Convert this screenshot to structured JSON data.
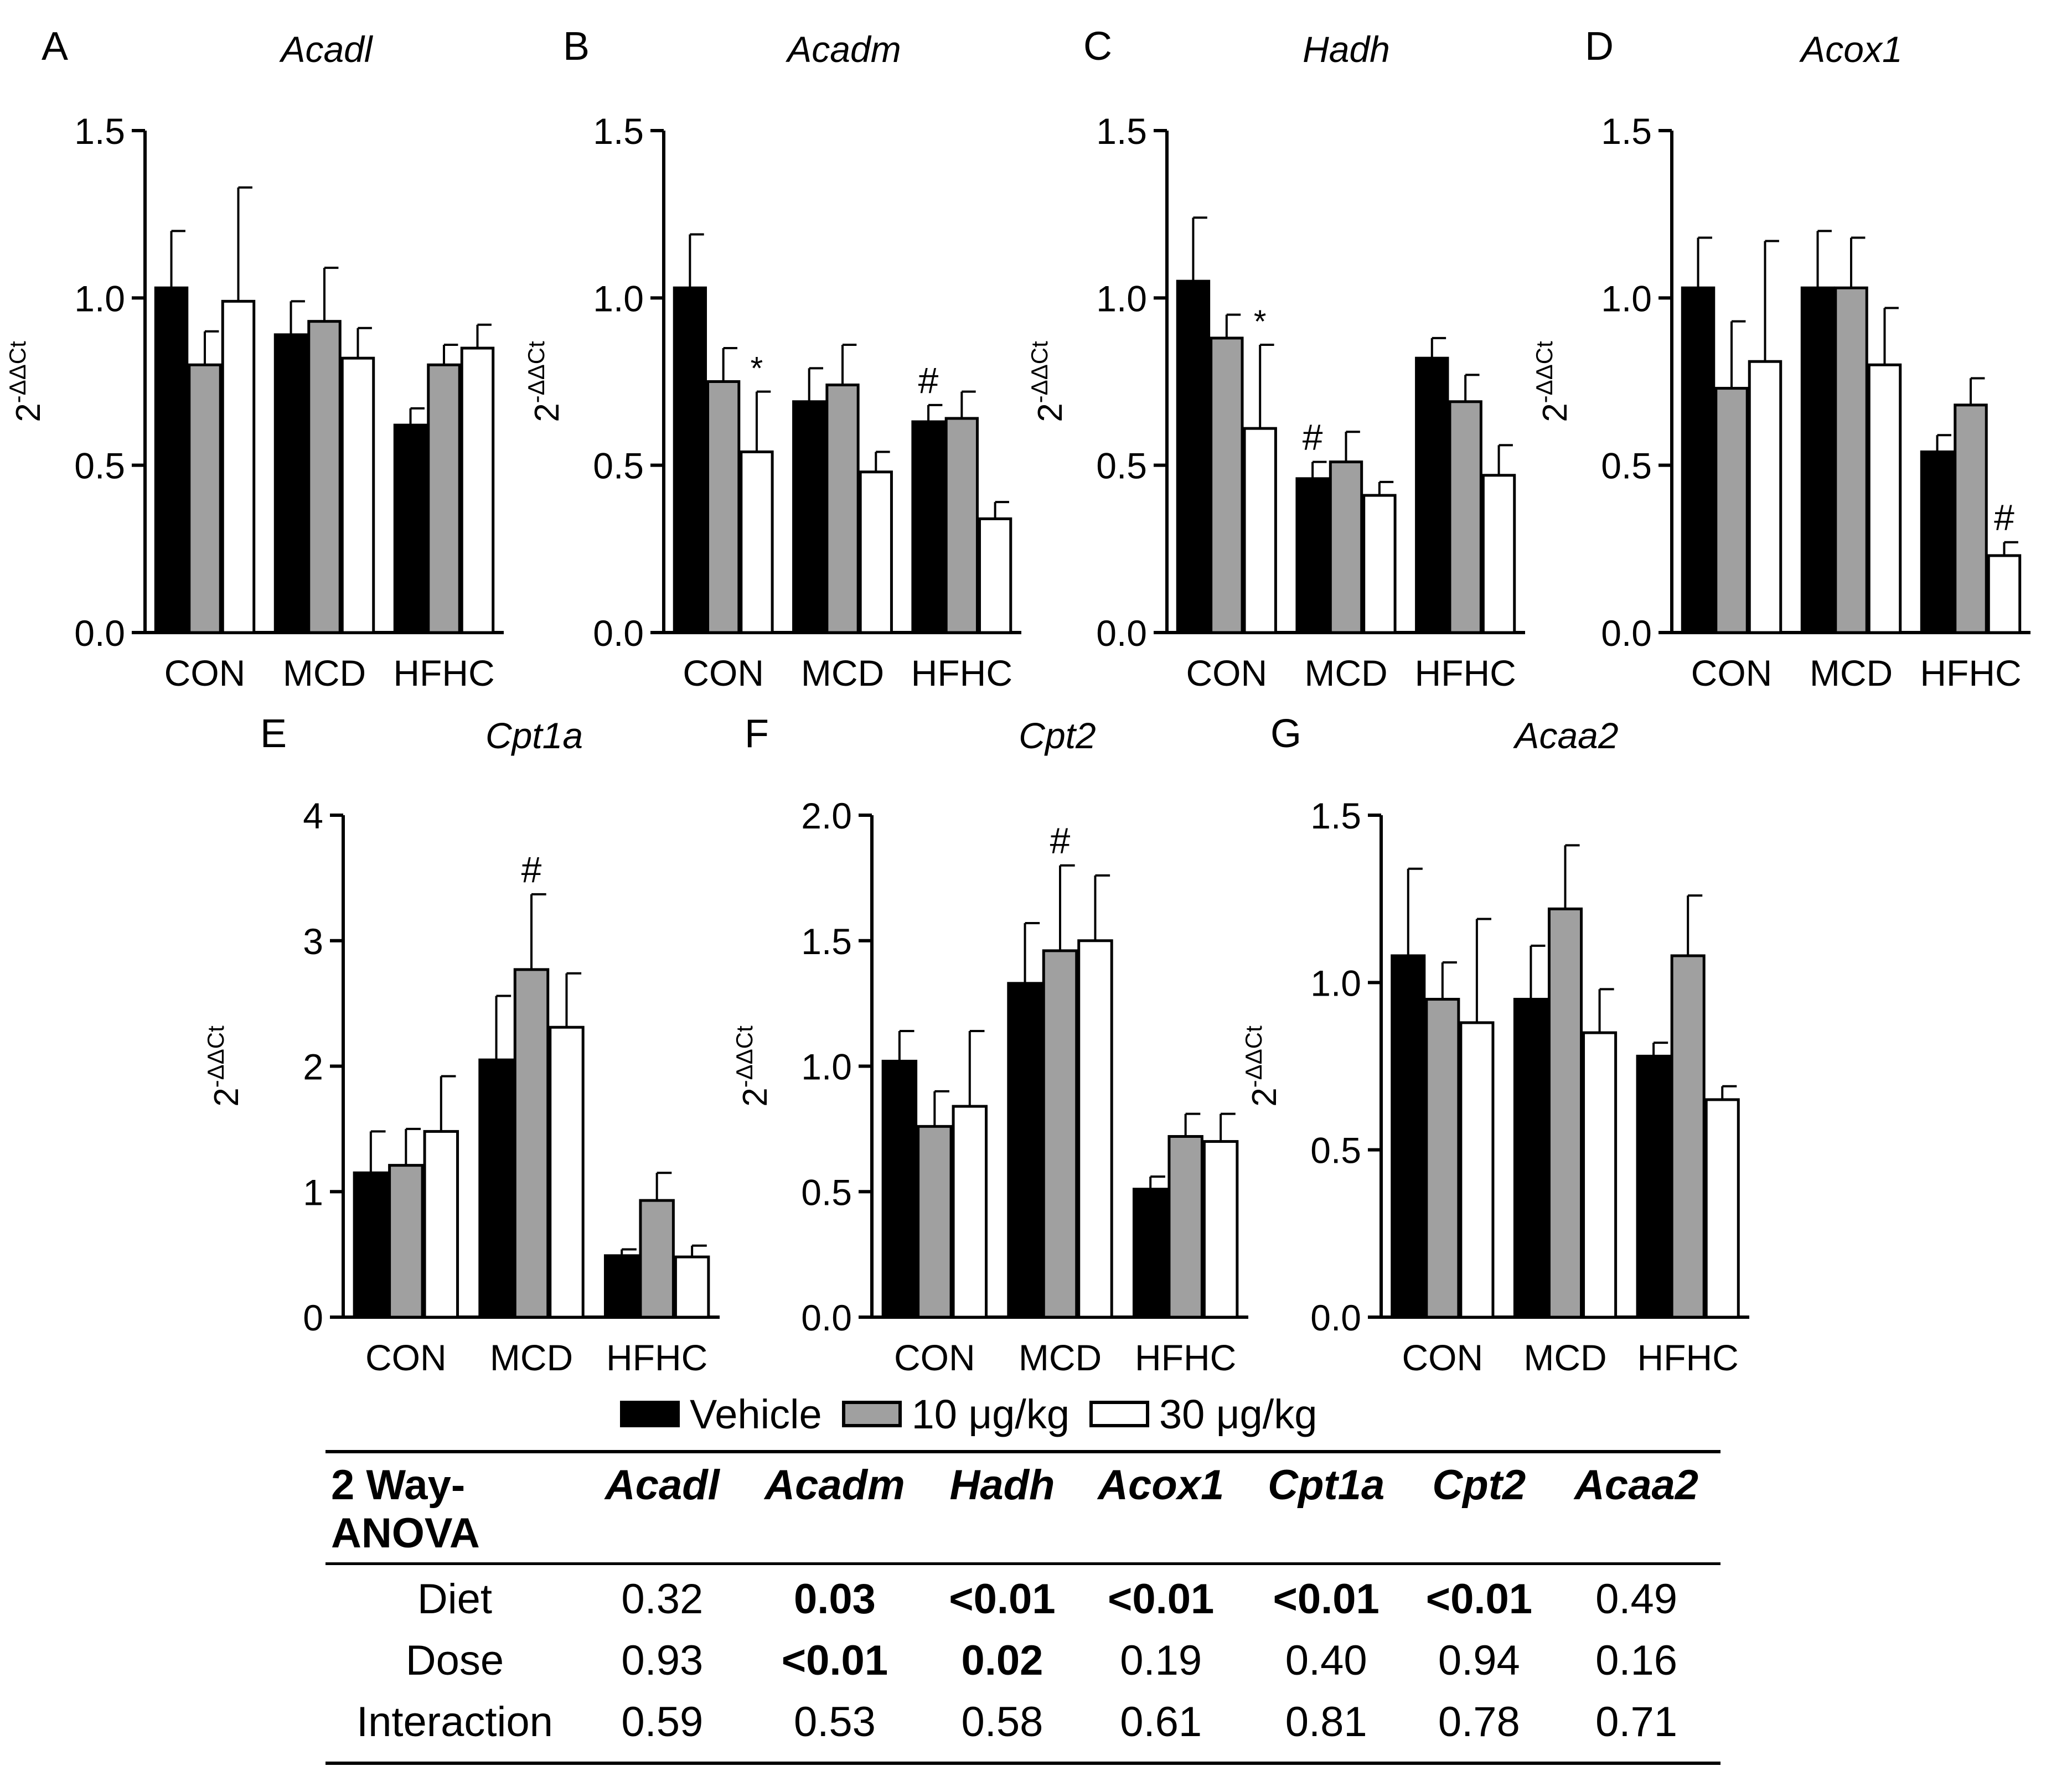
{
  "colors": {
    "vehicle": "#000000",
    "dose10": "#a0a0a0",
    "dose30": "#ffffff"
  },
  "legend": [
    {
      "label": "Vehicle",
      "color": "#000000"
    },
    {
      "label": "10 μg/kg",
      "color": "#a0a0a0"
    },
    {
      "label": "30 μg/kg",
      "color": "#ffffff"
    }
  ],
  "chart_data": [
    {
      "letter": "A",
      "type": "bar",
      "title": "Acadl",
      "ylabel_base": "2",
      "ylabel_sup": "-ΔΔCt",
      "categories": [
        "CON",
        "MCD",
        "HFHC"
      ],
      "ylim": [
        0,
        1.5
      ],
      "yticks": [
        "0.0",
        "0.5",
        "1.0",
        "1.5"
      ],
      "series": [
        {
          "name": "Vehicle",
          "values": [
            1.03,
            0.89,
            0.62
          ],
          "errors": [
            0.17,
            0.1,
            0.05
          ]
        },
        {
          "name": "10 μg/kg",
          "values": [
            0.8,
            0.93,
            0.8
          ],
          "errors": [
            0.1,
            0.16,
            0.06
          ]
        },
        {
          "name": "30 μg/kg",
          "values": [
            0.99,
            0.82,
            0.85
          ],
          "errors": [
            0.34,
            0.09,
            0.07
          ]
        }
      ],
      "annotations": []
    },
    {
      "letter": "B",
      "type": "bar",
      "title": "Acadm",
      "ylabel_base": "2",
      "ylabel_sup": "-ΔΔCt",
      "categories": [
        "CON",
        "MCD",
        "HFHC"
      ],
      "ylim": [
        0,
        1.5
      ],
      "yticks": [
        "0.0",
        "0.5",
        "1.0",
        "1.5"
      ],
      "series": [
        {
          "name": "Vehicle",
          "values": [
            1.03,
            0.69,
            0.63
          ],
          "errors": [
            0.16,
            0.1,
            0.05
          ]
        },
        {
          "name": "10 μg/kg",
          "values": [
            0.75,
            0.74,
            0.64
          ],
          "errors": [
            0.1,
            0.12,
            0.08
          ]
        },
        {
          "name": "30 μg/kg",
          "values": [
            0.54,
            0.48,
            0.34
          ],
          "errors": [
            0.18,
            0.06,
            0.05
          ]
        }
      ],
      "annotations": [
        {
          "symbol": "*",
          "group": 0,
          "series": 2
        },
        {
          "symbol": "#",
          "group": 2,
          "series": 0
        }
      ]
    },
    {
      "letter": "C",
      "type": "bar",
      "title": "Hadh",
      "ylabel_base": "2",
      "ylabel_sup": "-ΔΔCt",
      "categories": [
        "CON",
        "MCD",
        "HFHC"
      ],
      "ylim": [
        0,
        1.5
      ],
      "yticks": [
        "0.0",
        "0.5",
        "1.0",
        "1.5"
      ],
      "series": [
        {
          "name": "Vehicle",
          "values": [
            1.05,
            0.46,
            0.82
          ],
          "errors": [
            0.19,
            0.05,
            0.06
          ]
        },
        {
          "name": "10 μg/kg",
          "values": [
            0.88,
            0.51,
            0.69
          ],
          "errors": [
            0.07,
            0.09,
            0.08
          ]
        },
        {
          "name": "30 μg/kg",
          "values": [
            0.61,
            0.41,
            0.47
          ],
          "errors": [
            0.25,
            0.04,
            0.09
          ]
        }
      ],
      "annotations": [
        {
          "symbol": "*",
          "group": 0,
          "series": 2
        },
        {
          "symbol": "#",
          "group": 1,
          "series": 0
        }
      ]
    },
    {
      "letter": "D",
      "type": "bar",
      "title": "Acox1",
      "ylabel_base": "2",
      "ylabel_sup": "-ΔΔCt",
      "categories": [
        "CON",
        "MCD",
        "HFHC"
      ],
      "ylim": [
        0,
        1.5
      ],
      "yticks": [
        "0.0",
        "0.5",
        "1.0",
        "1.5"
      ],
      "series": [
        {
          "name": "Vehicle",
          "values": [
            1.03,
            1.03,
            0.54
          ],
          "errors": [
            0.15,
            0.17,
            0.05
          ]
        },
        {
          "name": "10 μg/kg",
          "values": [
            0.73,
            1.03,
            0.68
          ],
          "errors": [
            0.2,
            0.15,
            0.08
          ]
        },
        {
          "name": "30 μg/kg",
          "values": [
            0.81,
            0.8,
            0.23
          ],
          "errors": [
            0.36,
            0.17,
            0.04
          ]
        }
      ],
      "annotations": [
        {
          "symbol": "#",
          "group": 2,
          "series": 2
        }
      ]
    },
    {
      "letter": "E",
      "type": "bar",
      "title": "Cpt1a",
      "ylabel_base": "2",
      "ylabel_sup": "-ΔΔCt",
      "categories": [
        "CON",
        "MCD",
        "HFHC"
      ],
      "ylim": [
        0,
        4
      ],
      "yticks": [
        "0",
        "1",
        "2",
        "3",
        "4"
      ],
      "series": [
        {
          "name": "Vehicle",
          "values": [
            1.15,
            2.05,
            0.49
          ],
          "errors": [
            0.33,
            0.51,
            0.05
          ]
        },
        {
          "name": "10 μg/kg",
          "values": [
            1.21,
            2.77,
            0.93
          ],
          "errors": [
            0.29,
            0.6,
            0.22
          ]
        },
        {
          "name": "30 μg/kg",
          "values": [
            1.48,
            2.31,
            0.48
          ],
          "errors": [
            0.44,
            0.43,
            0.09
          ]
        }
      ],
      "annotations": [
        {
          "symbol": "#",
          "group": 1,
          "series": 1
        }
      ]
    },
    {
      "letter": "F",
      "type": "bar",
      "title": "Cpt2",
      "ylabel_base": "2",
      "ylabel_sup": "-ΔΔCt",
      "categories": [
        "CON",
        "MCD",
        "HFHC"
      ],
      "ylim": [
        0,
        2.0
      ],
      "yticks": [
        "0.0",
        "0.5",
        "1.0",
        "1.5",
        "2.0"
      ],
      "series": [
        {
          "name": "Vehicle",
          "values": [
            1.02,
            1.33,
            0.51
          ],
          "errors": [
            0.12,
            0.24,
            0.05
          ]
        },
        {
          "name": "10 μg/kg",
          "values": [
            0.76,
            1.46,
            0.72
          ],
          "errors": [
            0.14,
            0.34,
            0.09
          ]
        },
        {
          "name": "30 μg/kg",
          "values": [
            0.84,
            1.5,
            0.7
          ],
          "errors": [
            0.3,
            0.26,
            0.11
          ]
        }
      ],
      "annotations": [
        {
          "symbol": "#",
          "group": 1,
          "series": 1
        }
      ]
    },
    {
      "letter": "G",
      "type": "bar",
      "title": "Acaa2",
      "ylabel_base": "2",
      "ylabel_sup": "-ΔΔCt",
      "categories": [
        "CON",
        "MCD",
        "HFHC"
      ],
      "ylim": [
        0,
        1.5
      ],
      "yticks": [
        "0.0",
        "0.5",
        "1.0",
        "1.5"
      ],
      "series": [
        {
          "name": "Vehicle",
          "values": [
            1.08,
            0.95,
            0.78
          ],
          "errors": [
            0.26,
            0.16,
            0.04
          ]
        },
        {
          "name": "10 μg/kg",
          "values": [
            0.95,
            1.22,
            1.08
          ],
          "errors": [
            0.11,
            0.19,
            0.18
          ]
        },
        {
          "name": "30 μg/kg",
          "values": [
            0.88,
            0.85,
            0.65
          ],
          "errors": [
            0.31,
            0.13,
            0.04
          ]
        }
      ],
      "annotations": []
    }
  ],
  "anova": {
    "header_line1": "2 Way-",
    "header_line2": "ANOVA",
    "genes": [
      "Acadl",
      "Acadm",
      "Hadh",
      "Acox1",
      "Cpt1a",
      "Cpt2",
      "Acaa2"
    ],
    "rows": [
      {
        "label": "Diet",
        "values": [
          {
            "v": "0.32",
            "sig": false
          },
          {
            "v": "0.03",
            "sig": true
          },
          {
            "v": "<0.01",
            "sig": true
          },
          {
            "v": "<0.01",
            "sig": true
          },
          {
            "v": "<0.01",
            "sig": true
          },
          {
            "v": "<0.01",
            "sig": true
          },
          {
            "v": "0.49",
            "sig": false
          }
        ]
      },
      {
        "label": "Dose",
        "values": [
          {
            "v": "0.93",
            "sig": false
          },
          {
            "v": "<0.01",
            "sig": true
          },
          {
            "v": "0.02",
            "sig": true
          },
          {
            "v": "0.19",
            "sig": false
          },
          {
            "v": "0.40",
            "sig": false
          },
          {
            "v": "0.94",
            "sig": false
          },
          {
            "v": "0.16",
            "sig": false
          }
        ]
      },
      {
        "label": "Interaction",
        "values": [
          {
            "v": "0.59",
            "sig": false
          },
          {
            "v": "0.53",
            "sig": false
          },
          {
            "v": "0.58",
            "sig": false
          },
          {
            "v": "0.61",
            "sig": false
          },
          {
            "v": "0.81",
            "sig": false
          },
          {
            "v": "0.78",
            "sig": false
          },
          {
            "v": "0.71",
            "sig": false
          }
        ]
      }
    ]
  }
}
